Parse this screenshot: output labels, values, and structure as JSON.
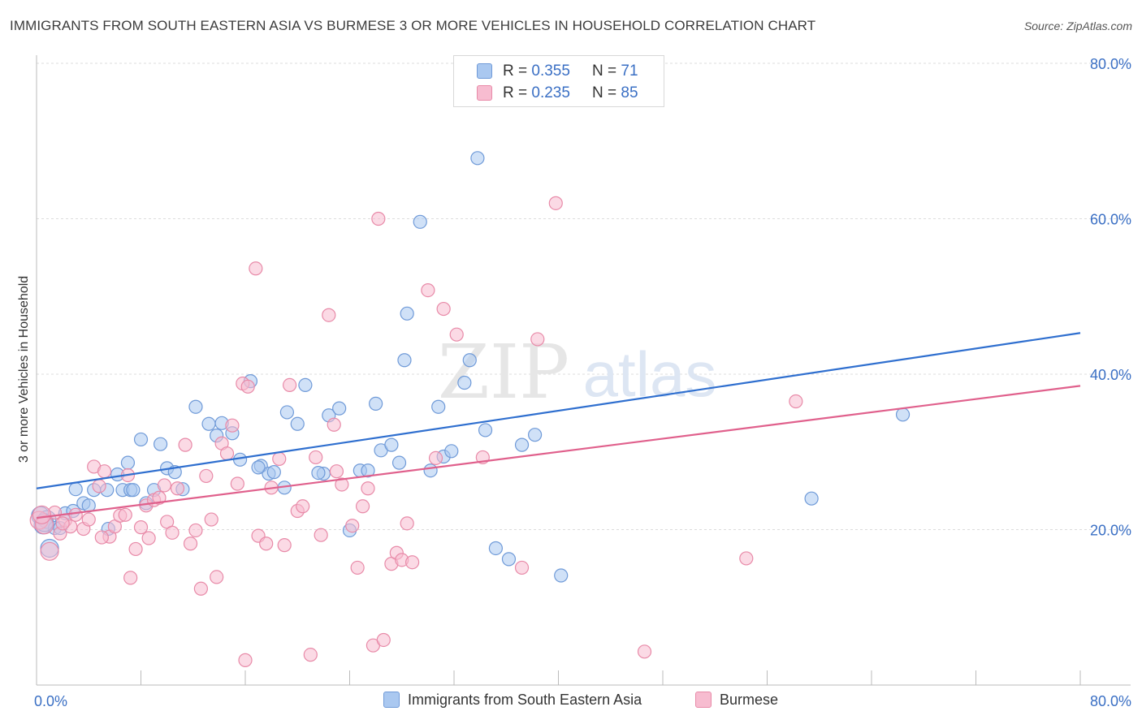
{
  "title": "IMMIGRANTS FROM SOUTH EASTERN ASIA VS BURMESE 3 OR MORE VEHICLES IN HOUSEHOLD CORRELATION CHART",
  "source": "Source: ZipAtlas.com",
  "watermark": {
    "part1": "ZIP",
    "part2": "atlas"
  },
  "legend": {
    "rows": [
      {
        "r_label": "R = ",
        "r_value": "0.355",
        "n_label": "N = ",
        "n_value": "71"
      },
      {
        "r_label": "R = ",
        "r_value": "0.235",
        "n_label": "N = ",
        "n_value": "85"
      }
    ]
  },
  "colors": {
    "blue_fill": "#aac8f0",
    "blue_stroke": "#6f9ad8",
    "blue_line": "#2f6fcf",
    "pink_fill": "#f7bcd0",
    "pink_stroke": "#e88aa8",
    "pink_line": "#e0608c",
    "axis_text": "#3a6fc4",
    "grid": "#dcdcdc"
  },
  "chart_data": {
    "type": "scatter",
    "xlabel": "",
    "ylabel": "3 or more Vehicles in Household",
    "xlim": [
      0,
      80
    ],
    "ylim": [
      0,
      80
    ],
    "x_tick_labels": [
      "0.0%",
      "80.0%"
    ],
    "y_tick_labels": [
      "20.0%",
      "40.0%",
      "60.0%",
      "80.0%"
    ],
    "y_ticks": [
      20,
      40,
      60,
      80
    ],
    "grid": true,
    "legend_position": "top-center",
    "series": [
      {
        "name": "Immigrants from South Eastern Asia",
        "color": "#aac8f0",
        "trend": {
          "x": [
            0,
            80
          ],
          "y": [
            25.3,
            45.3
          ]
        },
        "points": [
          [
            0.3,
            21.8
          ],
          [
            0.5,
            20.6
          ],
          [
            0.8,
            21.3
          ],
          [
            1.0,
            17.6
          ],
          [
            1.4,
            20.2
          ],
          [
            2.2,
            22.1
          ],
          [
            2.8,
            22.4
          ],
          [
            3.0,
            25.2
          ],
          [
            3.6,
            23.4
          ],
          [
            4.4,
            25.1
          ],
          [
            5.4,
            25.1
          ],
          [
            6.2,
            27.1
          ],
          [
            6.6,
            25.1
          ],
          [
            7.0,
            28.6
          ],
          [
            7.2,
            25.1
          ],
          [
            8.0,
            31.6
          ],
          [
            8.4,
            23.4
          ],
          [
            9.0,
            25.1
          ],
          [
            9.5,
            31.0
          ],
          [
            10.0,
            27.9
          ],
          [
            11.2,
            25.2
          ],
          [
            12.2,
            35.8
          ],
          [
            13.2,
            33.6
          ],
          [
            13.8,
            32.1
          ],
          [
            14.2,
            33.7
          ],
          [
            15.0,
            32.4
          ],
          [
            15.6,
            29.0
          ],
          [
            16.4,
            39.1
          ],
          [
            17.2,
            28.2
          ],
          [
            17.8,
            27.2
          ],
          [
            18.2,
            27.4
          ],
          [
            19.0,
            25.4
          ],
          [
            19.2,
            35.1
          ],
          [
            20.0,
            33.6
          ],
          [
            20.6,
            38.6
          ],
          [
            22.0,
            27.2
          ],
          [
            22.4,
            34.7
          ],
          [
            23.2,
            35.6
          ],
          [
            24.0,
            19.9
          ],
          [
            24.8,
            27.6
          ],
          [
            25.4,
            27.6
          ],
          [
            26.0,
            36.2
          ],
          [
            26.4,
            30.2
          ],
          [
            27.2,
            30.9
          ],
          [
            27.8,
            28.6
          ],
          [
            28.2,
            41.8
          ],
          [
            28.4,
            47.8
          ],
          [
            29.4,
            59.6
          ],
          [
            30.2,
            27.6
          ],
          [
            30.8,
            35.8
          ],
          [
            31.2,
            29.4
          ],
          [
            31.8,
            30.1
          ],
          [
            32.8,
            38.9
          ],
          [
            33.2,
            41.8
          ],
          [
            33.8,
            67.8
          ],
          [
            34.4,
            32.8
          ],
          [
            35.2,
            17.6
          ],
          [
            36.2,
            16.2
          ],
          [
            37.2,
            30.9
          ],
          [
            38.2,
            32.2
          ],
          [
            40.2,
            14.1
          ],
          [
            59.4,
            24.0
          ],
          [
            66.4,
            34.8
          ],
          [
            0.6,
            20.9
          ],
          [
            1.8,
            20.2
          ],
          [
            4.0,
            23.1
          ],
          [
            5.5,
            20.1
          ],
          [
            7.4,
            25.1
          ],
          [
            10.6,
            27.4
          ],
          [
            17.0,
            28.0
          ],
          [
            21.6,
            27.3
          ]
        ]
      },
      {
        "name": "Burmese",
        "color": "#f7bcd0",
        "trend": {
          "x": [
            0,
            80
          ],
          "y": [
            21.5,
            38.5
          ]
        },
        "points": [
          [
            0.2,
            21.2
          ],
          [
            0.6,
            20.6
          ],
          [
            1.0,
            17.2
          ],
          [
            1.4,
            22.2
          ],
          [
            1.8,
            19.5
          ],
          [
            2.2,
            21.2
          ],
          [
            2.6,
            20.4
          ],
          [
            3.0,
            21.9
          ],
          [
            3.6,
            20.1
          ],
          [
            4.0,
            21.3
          ],
          [
            4.4,
            28.1
          ],
          [
            4.8,
            25.6
          ],
          [
            5.2,
            27.5
          ],
          [
            5.6,
            19.1
          ],
          [
            6.0,
            20.4
          ],
          [
            6.4,
            21.8
          ],
          [
            6.8,
            21.9
          ],
          [
            7.2,
            13.8
          ],
          [
            7.6,
            17.5
          ],
          [
            8.0,
            20.3
          ],
          [
            8.4,
            23.1
          ],
          [
            8.6,
            18.9
          ],
          [
            9.0,
            23.8
          ],
          [
            9.4,
            24.1
          ],
          [
            10.0,
            21.0
          ],
          [
            10.4,
            19.6
          ],
          [
            10.8,
            25.3
          ],
          [
            11.4,
            30.9
          ],
          [
            11.8,
            18.2
          ],
          [
            12.2,
            19.9
          ],
          [
            12.6,
            12.4
          ],
          [
            13.0,
            26.9
          ],
          [
            13.4,
            21.3
          ],
          [
            13.8,
            13.9
          ],
          [
            14.2,
            31.1
          ],
          [
            14.6,
            29.8
          ],
          [
            15.0,
            33.4
          ],
          [
            15.4,
            25.9
          ],
          [
            15.8,
            38.8
          ],
          [
            16.2,
            38.4
          ],
          [
            16.8,
            53.6
          ],
          [
            17.0,
            19.2
          ],
          [
            17.6,
            18.2
          ],
          [
            18.0,
            25.4
          ],
          [
            18.6,
            29.1
          ],
          [
            19.0,
            18.0
          ],
          [
            19.4,
            38.6
          ],
          [
            20.0,
            22.4
          ],
          [
            20.4,
            23.0
          ],
          [
            21.0,
            3.9
          ],
          [
            21.4,
            29.3
          ],
          [
            21.8,
            19.3
          ],
          [
            22.4,
            47.6
          ],
          [
            22.8,
            33.5
          ],
          [
            23.0,
            27.5
          ],
          [
            23.4,
            25.8
          ],
          [
            24.2,
            20.5
          ],
          [
            24.6,
            15.1
          ],
          [
            25.0,
            23.0
          ],
          [
            25.4,
            25.3
          ],
          [
            25.8,
            5.1
          ],
          [
            26.2,
            60.0
          ],
          [
            26.6,
            5.8
          ],
          [
            27.2,
            15.6
          ],
          [
            27.6,
            17.0
          ],
          [
            28.0,
            16.1
          ],
          [
            28.4,
            20.8
          ],
          [
            28.8,
            15.8
          ],
          [
            30.0,
            50.8
          ],
          [
            30.6,
            29.2
          ],
          [
            31.2,
            48.4
          ],
          [
            32.2,
            45.1
          ],
          [
            34.2,
            29.3
          ],
          [
            37.2,
            15.1
          ],
          [
            38.4,
            44.5
          ],
          [
            39.8,
            62.0
          ],
          [
            46.6,
            4.3
          ],
          [
            54.4,
            16.3
          ],
          [
            58.2,
            36.5
          ],
          [
            0.4,
            21.9
          ],
          [
            2.0,
            20.8
          ],
          [
            5.0,
            19.0
          ],
          [
            7.0,
            27.0
          ],
          [
            9.8,
            25.7
          ],
          [
            16.0,
            3.2
          ]
        ]
      }
    ]
  },
  "bottom_legend": {
    "items": [
      {
        "label": "Immigrants from South Eastern Asia"
      },
      {
        "label": "Burmese"
      }
    ]
  }
}
